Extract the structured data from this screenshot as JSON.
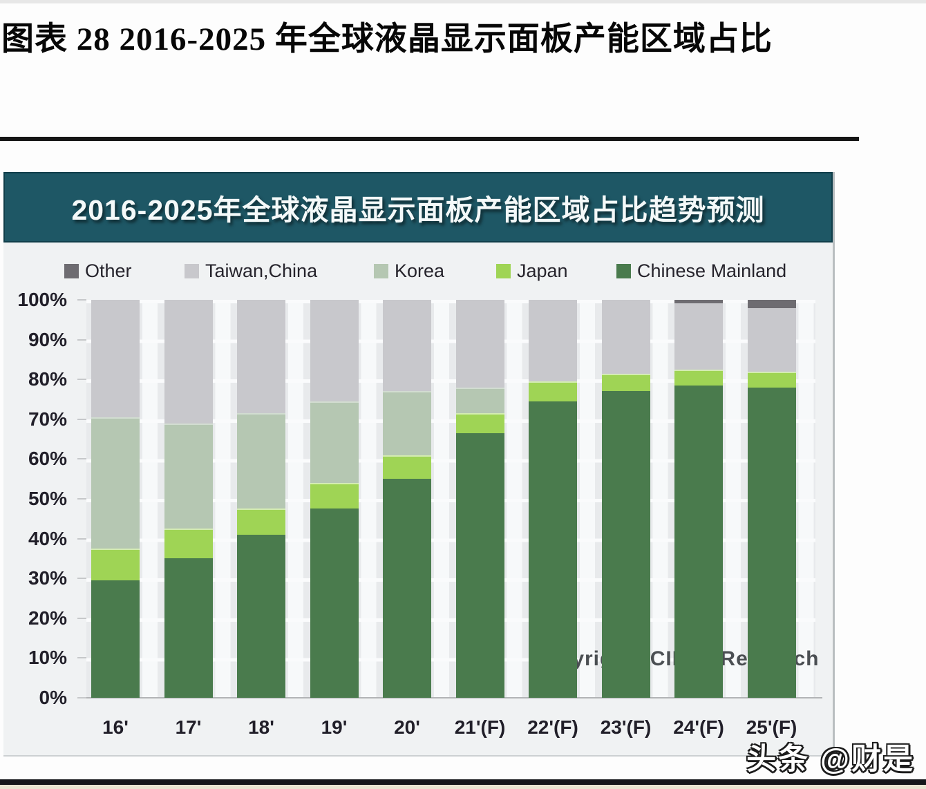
{
  "page": {
    "doc_title": "图表 28 2016-2025 年全球液晶显示面板产能区域占比",
    "watermark": "头条 @财是"
  },
  "chart": {
    "banner_title": "2016-2025年全球液晶显示面板产能区域占比趋势预测",
    "copyright": "Copyright©CINNOResearch",
    "colors": {
      "banner_bg": "#1e5765",
      "plot_bg": "#e8eaec",
      "gridline": "#fafbfc"
    }
  },
  "chart_data": {
    "type": "bar",
    "stacked": true,
    "title": "2016-2025年全球液晶显示面板产能区域占比趋势预测",
    "categories": [
      "16'",
      "17'",
      "18'",
      "19'",
      "20'",
      "21'(F)",
      "22'(F)",
      "23'(F)",
      "24'(F)",
      "25'(F)"
    ],
    "series": [
      {
        "name": "Chinese Mainland",
        "color": "#4a7b4d",
        "values": [
          29.5,
          35,
          41,
          47.5,
          55,
          66.5,
          74.5,
          77,
          78.5,
          78
        ]
      },
      {
        "name": "Japan",
        "color": "#9fd455",
        "values": [
          8,
          7.5,
          6.5,
          6.5,
          6,
          5,
          5,
          4.5,
          4,
          4
        ]
      },
      {
        "name": "Korea",
        "color": "#b5c7b2",
        "values": [
          33,
          26.5,
          24,
          20.5,
          16,
          6.5,
          0,
          0,
          0,
          0
        ]
      },
      {
        "name": "Taiwan,China",
        "color": "#c8c8cc",
        "values": [
          29.5,
          31,
          28.5,
          25.5,
          23,
          22,
          20.5,
          18.5,
          16.7,
          16
        ]
      },
      {
        "name": "Other",
        "color": "#6e6c71",
        "values": [
          0,
          0,
          0,
          0,
          0,
          0,
          0,
          0,
          0.8,
          2
        ]
      }
    ],
    "legend": [
      "Other",
      "Taiwan,China",
      "Korea",
      "Japan",
      "Chinese Mainland"
    ],
    "legend_position": "top",
    "xlabel": "",
    "ylabel": "",
    "ylim": [
      0,
      100
    ],
    "yticks": [
      "100%",
      "90%",
      "80%",
      "70%",
      "60%",
      "50%",
      "40%",
      "30%",
      "20%",
      "10%",
      "0%"
    ],
    "grid": true
  }
}
